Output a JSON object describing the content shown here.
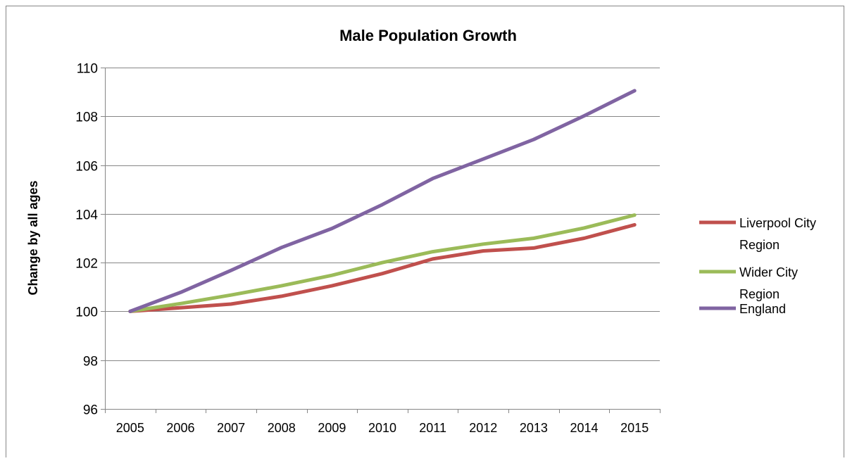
{
  "chart_data": {
    "type": "line",
    "title": "Male Population Growth",
    "xlabel": "",
    "ylabel": "Change by all ages",
    "categories": [
      "2005",
      "2006",
      "2007",
      "2008",
      "2009",
      "2010",
      "2011",
      "2012",
      "2013",
      "2014",
      "2015"
    ],
    "ylim": [
      96,
      110
    ],
    "yticks": [
      96,
      98,
      100,
      102,
      104,
      106,
      108,
      110
    ],
    "grid": true,
    "legend": "right",
    "series": [
      {
        "name": "Liverpool City Region",
        "legend_lines": [
          "Liverpool City",
          "Region"
        ],
        "color": "#c0504d",
        "values": [
          100,
          100.15,
          100.3,
          100.62,
          101.05,
          101.55,
          102.15,
          102.48,
          102.6,
          103.0,
          103.55
        ]
      },
      {
        "name": "Wider City Region",
        "legend_lines": [
          "Wider City",
          "Region"
        ],
        "color": "#9bbb59",
        "values": [
          100,
          100.32,
          100.67,
          101.05,
          101.48,
          102.0,
          102.45,
          102.76,
          103.0,
          103.42,
          103.95
        ]
      },
      {
        "name": "England",
        "legend_lines": [
          "England"
        ],
        "color": "#8064a2",
        "values": [
          100,
          100.78,
          101.68,
          102.62,
          103.4,
          104.38,
          105.45,
          106.25,
          107.05,
          108.02,
          109.05
        ]
      }
    ]
  }
}
